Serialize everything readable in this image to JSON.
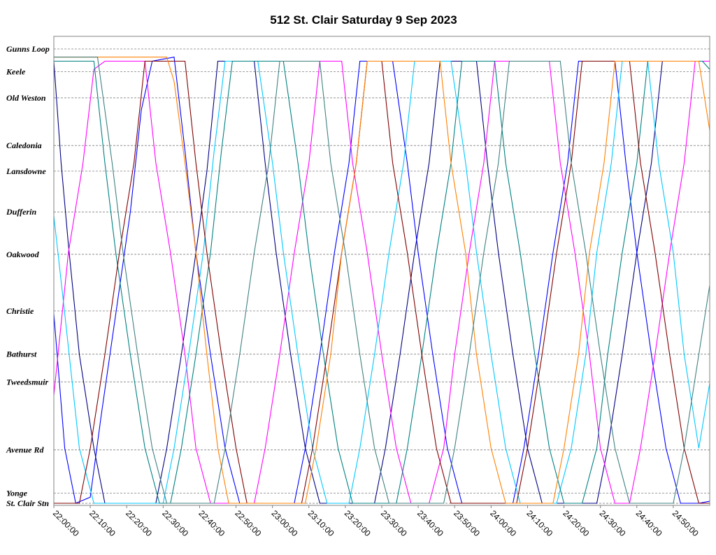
{
  "title": "512 St. Clair Saturday 9 Sep 2023",
  "chart_data": {
    "type": "line",
    "title": "512 St. Clair Saturday 9 Sep 2023",
    "xlabel": "",
    "ylabel": "",
    "x_unit": "time of day (minutes after midnight; service day continues past 24:00)",
    "xlim": [
      1320,
      1500
    ],
    "x_ticks": [
      "22:00:00",
      "22:10:00",
      "22:20:00",
      "22:30:00",
      "22:40:00",
      "22:50:00",
      "23:00:00",
      "23:10:00",
      "23:20:00",
      "23:30:00",
      "23:40:00",
      "23:50:00",
      "24:00:00",
      "24:10:00",
      "24:20:00",
      "24:30:00",
      "24:40:00",
      "24:50:00"
    ],
    "stops": [
      {
        "name": "Gunns Loop",
        "pos": 0.0
      },
      {
        "name": "Keele",
        "pos": 0.56
      },
      {
        "name": "Old Weston",
        "pos": 1.2
      },
      {
        "name": "Caledonia",
        "pos": 2.37
      },
      {
        "name": "Lansdowne",
        "pos": 3.0
      },
      {
        "name": "Dufferin",
        "pos": 4.0
      },
      {
        "name": "Oakwood",
        "pos": 5.04
      },
      {
        "name": "Christie",
        "pos": 6.43
      },
      {
        "name": "Bathurst",
        "pos": 7.49
      },
      {
        "name": "Tweedsmuir",
        "pos": 8.17
      },
      {
        "name": "Avenue Rd",
        "pos": 9.84
      },
      {
        "name": "Yonge",
        "pos": 10.9
      },
      {
        "name": "St. Clair Stn",
        "pos": 11.15
      }
    ],
    "grid": true,
    "legend": "none",
    "series": [
      {
        "color": "#000080",
        "points": [
          [
            1320,
            0.3
          ],
          [
            1322,
            2.8
          ],
          [
            1324,
            4.8
          ],
          [
            1327,
            7.5
          ],
          [
            1331,
            9.8
          ],
          [
            1334,
            11.15
          ],
          [
            1348,
            11.15
          ],
          [
            1351,
            9.8
          ],
          [
            1355,
            7.5
          ],
          [
            1359,
            5.0
          ],
          [
            1362,
            3.0
          ],
          [
            1365,
            0.3
          ],
          [
            1375,
            0.3
          ],
          [
            1378,
            2.8
          ],
          [
            1381,
            5.0
          ],
          [
            1385,
            7.5
          ],
          [
            1389,
            9.8
          ],
          [
            1393,
            11.15
          ],
          [
            1408,
            11.15
          ],
          [
            1411,
            9.8
          ],
          [
            1415,
            7.5
          ],
          [
            1419,
            5.0
          ],
          [
            1423,
            2.8
          ],
          [
            1426,
            0.3
          ],
          [
            1436,
            0.3
          ],
          [
            1439,
            2.8
          ],
          [
            1442,
            5.0
          ],
          [
            1446,
            7.5
          ],
          [
            1450,
            9.8
          ],
          [
            1454,
            11.15
          ],
          [
            1469,
            11.15
          ],
          [
            1472,
            9.8
          ],
          [
            1476,
            7.5
          ],
          [
            1480,
            5.0
          ],
          [
            1484,
            2.8
          ],
          [
            1487,
            0.3
          ],
          [
            1500,
            0.3
          ]
        ]
      },
      {
        "color": "#0000FF",
        "points": [
          [
            1320,
            6.5
          ],
          [
            1323,
            9.8
          ],
          [
            1326,
            11.15
          ],
          [
            1330,
            11.0
          ],
          [
            1333,
            9.0
          ],
          [
            1337,
            6.5
          ],
          [
            1341,
            4.0
          ],
          [
            1344,
            1.5
          ],
          [
            1347,
            0.3
          ],
          [
            1353,
            0.2
          ],
          [
            1356,
            2.5
          ],
          [
            1359,
            5.0
          ],
          [
            1363,
            7.5
          ],
          [
            1367,
            9.8
          ],
          [
            1371,
            11.15
          ],
          [
            1386,
            11.15
          ],
          [
            1389,
            9.8
          ],
          [
            1393,
            7.5
          ],
          [
            1397,
            5.0
          ],
          [
            1401,
            2.8
          ],
          [
            1404,
            0.3
          ],
          [
            1413,
            0.3
          ],
          [
            1417,
            2.8
          ],
          [
            1420,
            5.0
          ],
          [
            1424,
            7.5
          ],
          [
            1428,
            9.8
          ],
          [
            1432,
            11.15
          ],
          [
            1446,
            11.15
          ],
          [
            1449,
            9.8
          ],
          [
            1453,
            7.5
          ],
          [
            1457,
            5.0
          ],
          [
            1461,
            2.8
          ],
          [
            1464,
            0.3
          ],
          [
            1474,
            0.3
          ],
          [
            1477,
            2.8
          ],
          [
            1480,
            5.0
          ],
          [
            1484,
            7.5
          ],
          [
            1488,
            9.8
          ],
          [
            1492,
            11.15
          ],
          [
            1497,
            11.15
          ],
          [
            1500,
            11.1
          ]
        ]
      },
      {
        "color": "#FF00FF",
        "points": [
          [
            1320,
            8.5
          ],
          [
            1324,
            5.0
          ],
          [
            1328,
            2.8
          ],
          [
            1331,
            0.5
          ],
          [
            1334,
            0.3
          ],
          [
            1345,
            0.3
          ],
          [
            1348,
            2.8
          ],
          [
            1352,
            5.0
          ],
          [
            1356,
            7.5
          ],
          [
            1359,
            9.8
          ],
          [
            1363,
            11.15
          ],
          [
            1375,
            11.15
          ],
          [
            1378,
            9.8
          ],
          [
            1382,
            7.5
          ],
          [
            1386,
            5.0
          ],
          [
            1390,
            2.8
          ],
          [
            1393,
            0.3
          ],
          [
            1399,
            0.3
          ],
          [
            1402,
            2.8
          ],
          [
            1406,
            5.0
          ],
          [
            1410,
            7.5
          ],
          [
            1414,
            9.8
          ],
          [
            1418,
            11.15
          ],
          [
            1423,
            11.15
          ],
          [
            1427,
            9.8
          ],
          [
            1430,
            7.5
          ],
          [
            1434,
            5.0
          ],
          [
            1438,
            2.8
          ],
          [
            1441,
            0.3
          ],
          [
            1456,
            0.3
          ],
          [
            1459,
            2.8
          ],
          [
            1463,
            5.0
          ],
          [
            1467,
            7.5
          ],
          [
            1470,
            9.8
          ],
          [
            1474,
            11.15
          ],
          [
            1478,
            11.15
          ],
          [
            1481,
            9.8
          ],
          [
            1485,
            7.5
          ],
          [
            1489,
            5.0
          ],
          [
            1493,
            2.8
          ],
          [
            1496,
            0.3
          ],
          [
            1500,
            0.3
          ]
        ]
      },
      {
        "color": "#00C8FF",
        "points": [
          [
            1320,
            4.1
          ],
          [
            1323,
            6.5
          ],
          [
            1327,
            9.8
          ],
          [
            1331,
            11.15
          ],
          [
            1350,
            11.15
          ],
          [
            1353,
            9.8
          ],
          [
            1357,
            7.5
          ],
          [
            1361,
            5.0
          ],
          [
            1364,
            2.5
          ],
          [
            1367,
            0.3
          ],
          [
            1376,
            0.3
          ],
          [
            1380,
            2.8
          ],
          [
            1383,
            5.0
          ],
          [
            1387,
            7.5
          ],
          [
            1391,
            9.8
          ],
          [
            1395,
            11.15
          ],
          [
            1401,
            11.15
          ],
          [
            1404,
            9.8
          ],
          [
            1408,
            7.5
          ],
          [
            1412,
            5.0
          ],
          [
            1416,
            2.8
          ],
          [
            1419,
            0.3
          ],
          [
            1429,
            0.3
          ],
          [
            1433,
            2.8
          ],
          [
            1436,
            5.0
          ],
          [
            1440,
            7.5
          ],
          [
            1444,
            9.8
          ],
          [
            1448,
            11.15
          ],
          [
            1458,
            11.15
          ],
          [
            1462,
            9.8
          ],
          [
            1466,
            7.5
          ],
          [
            1469,
            5.0
          ],
          [
            1473,
            2.8
          ],
          [
            1476,
            0.3
          ],
          [
            1483,
            0.3
          ],
          [
            1486,
            2.8
          ],
          [
            1490,
            5.0
          ],
          [
            1493,
            7.5
          ],
          [
            1497,
            9.8
          ],
          [
            1500,
            8.2
          ]
        ]
      },
      {
        "color": "#008080",
        "points": [
          [
            1320,
            0.3
          ],
          [
            1331,
            0.3
          ],
          [
            1334,
            2.8
          ],
          [
            1337,
            5.0
          ],
          [
            1341,
            7.5
          ],
          [
            1345,
            9.8
          ],
          [
            1349,
            11.15
          ],
          [
            1352,
            11.15
          ],
          [
            1355,
            9.8
          ],
          [
            1359,
            7.5
          ],
          [
            1363,
            5.0
          ],
          [
            1366,
            2.5
          ],
          [
            1369,
            0.3
          ],
          [
            1383,
            0.3
          ],
          [
            1387,
            2.8
          ],
          [
            1390,
            5.0
          ],
          [
            1394,
            7.5
          ],
          [
            1398,
            9.8
          ],
          [
            1402,
            11.15
          ],
          [
            1414,
            11.15
          ],
          [
            1417,
            9.8
          ],
          [
            1421,
            7.5
          ],
          [
            1425,
            5.0
          ],
          [
            1429,
            2.8
          ],
          [
            1432,
            0.3
          ],
          [
            1441,
            0.3
          ],
          [
            1444,
            2.8
          ],
          [
            1448,
            5.0
          ],
          [
            1452,
            7.5
          ],
          [
            1456,
            9.8
          ],
          [
            1460,
            11.15
          ],
          [
            1465,
            11.15
          ],
          [
            1469,
            9.8
          ],
          [
            1472,
            7.5
          ],
          [
            1476,
            5.0
          ],
          [
            1480,
            2.8
          ],
          [
            1483,
            0.3
          ],
          [
            1498,
            0.3
          ],
          [
            1500,
            0.5
          ]
        ]
      },
      {
        "color": "#800000",
        "points": [
          [
            1320,
            11.15
          ],
          [
            1327,
            11.15
          ],
          [
            1330,
            9.8
          ],
          [
            1334,
            7.5
          ],
          [
            1338,
            5.0
          ],
          [
            1342,
            2.8
          ],
          [
            1345,
            0.3
          ],
          [
            1356,
            0.3
          ],
          [
            1359,
            2.8
          ],
          [
            1362,
            5.0
          ],
          [
            1366,
            7.5
          ],
          [
            1370,
            9.8
          ],
          [
            1373,
            11.15
          ],
          [
            1388,
            11.15
          ],
          [
            1391,
            9.8
          ],
          [
            1395,
            7.5
          ],
          [
            1399,
            5.0
          ],
          [
            1403,
            2.8
          ],
          [
            1406,
            0.3
          ],
          [
            1410,
            0.3
          ],
          [
            1413,
            2.8
          ],
          [
            1417,
            5.0
          ],
          [
            1421,
            7.5
          ],
          [
            1425,
            9.8
          ],
          [
            1429,
            11.15
          ],
          [
            1447,
            11.15
          ],
          [
            1450,
            9.8
          ],
          [
            1454,
            7.5
          ],
          [
            1458,
            5.0
          ],
          [
            1462,
            2.8
          ],
          [
            1465,
            0.3
          ],
          [
            1478,
            0.3
          ],
          [
            1481,
            2.8
          ],
          [
            1485,
            5.0
          ],
          [
            1489,
            7.5
          ],
          [
            1493,
            9.8
          ],
          [
            1497,
            11.15
          ],
          [
            1500,
            11.15
          ]
        ]
      },
      {
        "color": "#FF8000",
        "points": [
          [
            1320,
            0.2
          ],
          [
            1351,
            0.2
          ],
          [
            1353,
            0.8
          ],
          [
            1356,
            2.8
          ],
          [
            1359,
            5.0
          ],
          [
            1362,
            7.5
          ],
          [
            1365,
            9.8
          ],
          [
            1368,
            11.15
          ],
          [
            1389,
            11.15
          ],
          [
            1392,
            9.8
          ],
          [
            1396,
            7.5
          ],
          [
            1399,
            5.0
          ],
          [
            1403,
            2.8
          ],
          [
            1406,
            0.3
          ],
          [
            1426,
            0.3
          ],
          [
            1429,
            2.8
          ],
          [
            1433,
            5.0
          ],
          [
            1436,
            7.5
          ],
          [
            1440,
            9.8
          ],
          [
            1444,
            11.15
          ],
          [
            1457,
            11.15
          ],
          [
            1460,
            9.8
          ],
          [
            1464,
            7.5
          ],
          [
            1467,
            5.0
          ],
          [
            1471,
            2.8
          ],
          [
            1474,
            0.3
          ],
          [
            1497,
            0.3
          ],
          [
            1500,
            2.0
          ]
        ]
      },
      {
        "color": "#408080",
        "points": [
          [
            1320,
            0.2
          ],
          [
            1332,
            0.2
          ],
          [
            1336,
            2.8
          ],
          [
            1339,
            5.0
          ],
          [
            1343,
            7.5
          ],
          [
            1347,
            9.8
          ],
          [
            1351,
            11.15
          ],
          [
            1364,
            11.15
          ],
          [
            1367,
            9.8
          ],
          [
            1371,
            7.5
          ],
          [
            1375,
            5.0
          ],
          [
            1379,
            2.8
          ],
          [
            1382,
            0.3
          ],
          [
            1393,
            0.3
          ],
          [
            1396,
            2.8
          ],
          [
            1400,
            5.0
          ],
          [
            1404,
            7.5
          ],
          [
            1408,
            9.8
          ],
          [
            1412,
            11.15
          ],
          [
            1427,
            11.15
          ],
          [
            1430,
            9.8
          ],
          [
            1434,
            7.5
          ],
          [
            1438,
            5.0
          ],
          [
            1442,
            2.8
          ],
          [
            1445,
            0.3
          ],
          [
            1459,
            0.3
          ],
          [
            1462,
            2.8
          ],
          [
            1466,
            5.0
          ],
          [
            1470,
            7.5
          ],
          [
            1474,
            9.8
          ],
          [
            1478,
            11.15
          ],
          [
            1490,
            11.15
          ],
          [
            1493,
            9.8
          ],
          [
            1497,
            7.5
          ],
          [
            1500,
            5.8
          ]
        ]
      }
    ]
  }
}
